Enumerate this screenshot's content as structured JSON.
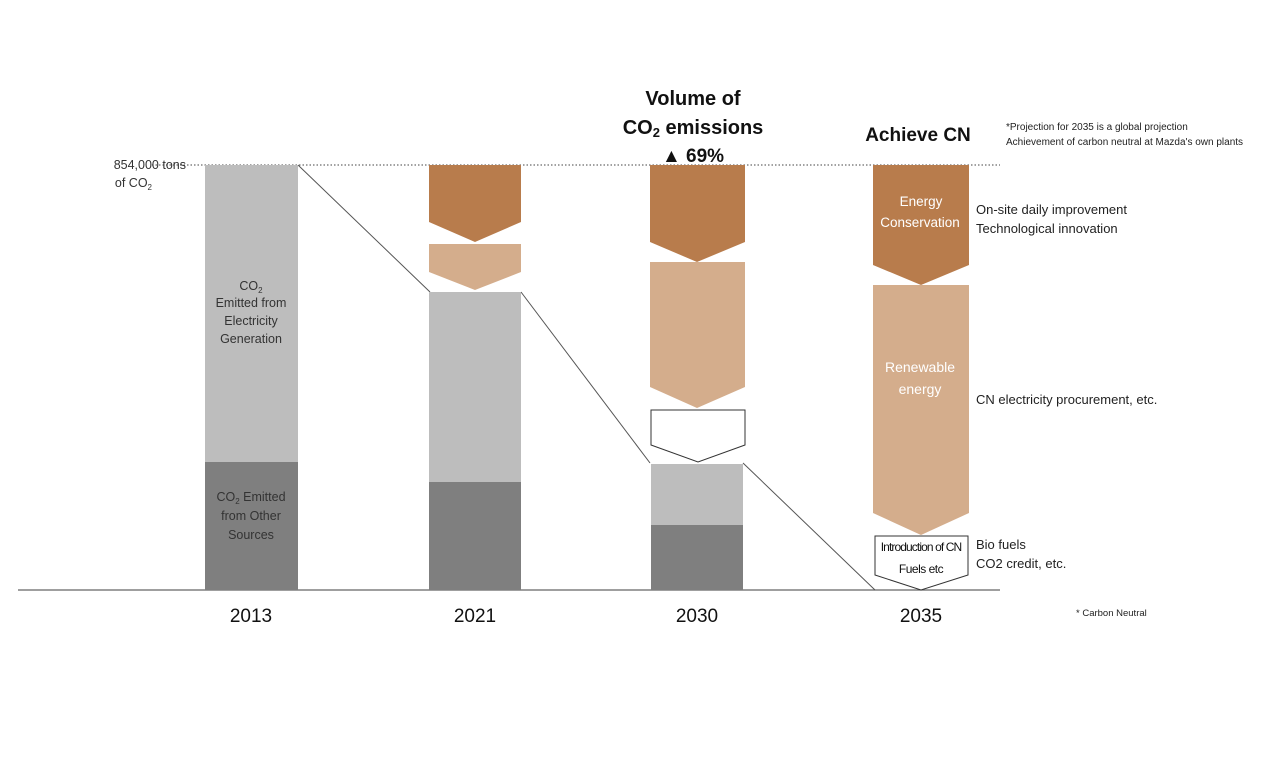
{
  "colors": {
    "bar_light_gray": "#bdbdbd",
    "bar_dark_gray": "#7f7f7f",
    "energy_conservation": "#b87c4c",
    "renewable_energy": "#d4ad8c",
    "cn_fuels": "#ffffff",
    "text": "#222222"
  },
  "baseline": {
    "value_line1": "854,000 tons",
    "value_line2_prefix": "of CO",
    "value_line2_sub": "2"
  },
  "headline_2030": {
    "line1": "Volume of",
    "line2_prefix": "CO",
    "line2_sub": "2",
    "line2_suffix": " emissions",
    "line3": "▲ 69%"
  },
  "headline_2035": "Achieve CN",
  "notes": {
    "projection_line1": "*Projection for 2035 is a global projection",
    "projection_line2": "Achievement of carbon neutral at Mazda's own plants",
    "carbon_neutral": "* Carbon Neutral"
  },
  "years": [
    "2013",
    "2021",
    "2030",
    "2035"
  ],
  "bar_2013": {
    "electricity_label": [
      "CO",
      "2",
      "Emitted from",
      "Electricity",
      "Generation"
    ],
    "other_label": [
      "CO",
      "2",
      " Emitted",
      "from Other",
      "Sources"
    ]
  },
  "bar_2035": {
    "energy_conservation": [
      "Energy",
      "Conservation"
    ],
    "renewable_energy": [
      "Renewable",
      "energy"
    ],
    "cn_fuels": [
      "Introduction of CN",
      "Fuels etc"
    ]
  },
  "side_labels": {
    "energy": [
      "On-site daily improvement",
      "Technological innovation"
    ],
    "renewable": "CN electricity procurement, etc.",
    "fuels": [
      "Bio fuels",
      "CO2 credit, etc."
    ]
  }
}
